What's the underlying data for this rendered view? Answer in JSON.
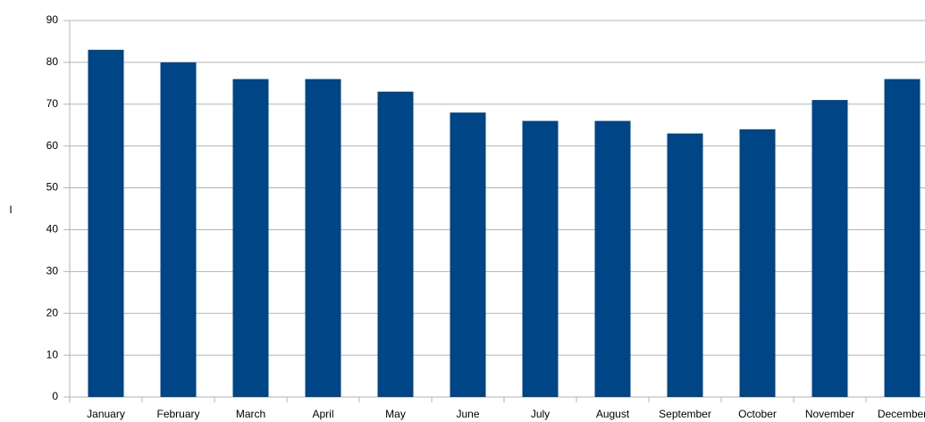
{
  "chart_data": {
    "type": "bar",
    "ylabel": "I",
    "categories": [
      "January",
      "February",
      "March",
      "April",
      "May",
      "June",
      "July",
      "August",
      "September",
      "October",
      "November",
      "December"
    ],
    "values": [
      83,
      80,
      76,
      76,
      73,
      68,
      66,
      66,
      63,
      64,
      71,
      76
    ],
    "color": "#004586",
    "ylim": [
      0,
      90
    ],
    "yticks": [
      0,
      10,
      20,
      30,
      40,
      50,
      60,
      70,
      80,
      90
    ],
    "grid": true
  }
}
